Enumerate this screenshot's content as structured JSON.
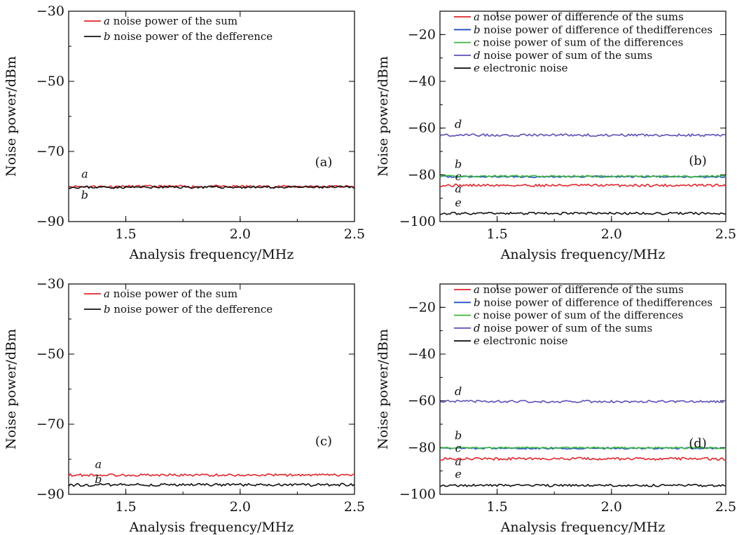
{
  "chart_data": [
    {
      "type": "line",
      "panel_label": "(a)",
      "xlabel": "Analysis frequency/MHz",
      "ylabel": "Noise power/dBm",
      "xlim": [
        1.25,
        2.5
      ],
      "ylim": [
        -90,
        -30
      ],
      "xticks": [
        1.5,
        2.0,
        2.5
      ],
      "xtick_labels": [
        "1.5",
        "2.0",
        "2.5"
      ],
      "yticks": [
        -90,
        -70,
        -50,
        -30
      ],
      "ytick_labels": [
        "−90",
        "−70",
        "−50",
        "−30"
      ],
      "legend_position": "top-left",
      "series": [
        {
          "key": "a",
          "name": "noise power of the sum",
          "color": "#e0262b",
          "level": -80.0,
          "noise": 0.35,
          "seed": 11
        },
        {
          "key": "b",
          "name": "noise power of the defference",
          "color": "#111111",
          "level": -80.2,
          "noise": 0.35,
          "seed": 23
        }
      ],
      "annotations": [
        {
          "text": "a",
          "x": 1.32,
          "y": -77.5
        },
        {
          "text": "b",
          "x": 1.32,
          "y": -83.5
        }
      ]
    },
    {
      "type": "line",
      "panel_label": "(b)",
      "xlabel": "Analysis frequency/MHz",
      "ylabel": "Noise power/dBm",
      "xlim": [
        1.25,
        2.5
      ],
      "ylim": [
        -100,
        -10
      ],
      "xticks": [
        1.5,
        2.0,
        2.5
      ],
      "xtick_labels": [
        "1.5",
        "2.0",
        "2.5"
      ],
      "yticks": [
        -100,
        -80,
        -60,
        -40,
        -20
      ],
      "ytick_labels": [
        "−100",
        "−80",
        "−60",
        "−40",
        "−20"
      ],
      "legend_position": "top-left",
      "series": [
        {
          "key": "a",
          "name": "noise power of difference of the sums",
          "color": "#e0262b",
          "level": -84.5,
          "noise": 0.55,
          "seed": 31
        },
        {
          "key": "b",
          "name": "noise power of difference of thedifferences",
          "color": "#1f4fbf",
          "level": -80.8,
          "noise": 0.35,
          "seed": 37
        },
        {
          "key": "c",
          "name": "noise power of sum of the differences",
          "color": "#3cb43c",
          "level": -80.6,
          "noise": 0.35,
          "seed": 41
        },
        {
          "key": "d",
          "name": "noise power of sum of the sums",
          "color": "#5a4fb8",
          "level": -63.0,
          "noise": 0.55,
          "seed": 43
        },
        {
          "key": "e",
          "name": "electronic noise",
          "color": "#111111",
          "level": -96.5,
          "noise": 0.5,
          "seed": 47
        }
      ],
      "annotations": [
        {
          "text": "d",
          "x": 1.33,
          "y": -60.0
        },
        {
          "text": "b",
          "x": 1.33,
          "y": -77.0
        },
        {
          "text": "c",
          "x": 1.33,
          "y": -82.3
        },
        {
          "text": "a",
          "x": 1.33,
          "y": -87.5
        },
        {
          "text": "e",
          "x": 1.33,
          "y": -93.5
        }
      ]
    },
    {
      "type": "line",
      "panel_label": "(c)",
      "xlabel": "Analysis frequency/MHz",
      "ylabel": "Noise power/dBm",
      "xlim": [
        1.25,
        2.5
      ],
      "ylim": [
        -90,
        -30
      ],
      "xticks": [
        1.5,
        2.0,
        2.5
      ],
      "xtick_labels": [
        "1.5",
        "2.0",
        "2.5"
      ],
      "yticks": [
        -90,
        -70,
        -50,
        -30
      ],
      "ytick_labels": [
        "−90",
        "−70",
        "−50",
        "−30"
      ],
      "legend_position": "top-left",
      "series": [
        {
          "key": "a",
          "name": "noise power of the sum",
          "color": "#e0262b",
          "level": -84.5,
          "noise": 0.35,
          "seed": 53
        },
        {
          "key": "b",
          "name": "noise power of the defference",
          "color": "#111111",
          "level": -87.3,
          "noise": 0.4,
          "seed": 59
        }
      ],
      "annotations": [
        {
          "text": "a",
          "x": 1.38,
          "y": -82.5
        },
        {
          "text": "b",
          "x": 1.38,
          "y": -86.8
        }
      ]
    },
    {
      "type": "line",
      "panel_label": "(d)",
      "xlabel": "Analysis frequency/MHz",
      "ylabel": "Noise power/dBm",
      "xlim": [
        1.25,
        2.5
      ],
      "ylim": [
        -100,
        -10
      ],
      "xticks": [
        1.5,
        2.0,
        2.5
      ],
      "xtick_labels": [
        "1.5",
        "2.0",
        "2.5"
      ],
      "yticks": [
        -100,
        -80,
        -60,
        -40,
        -20
      ],
      "ytick_labels": [
        "−100",
        "−80",
        "−60",
        "−40",
        "−20"
      ],
      "legend_position": "top-left",
      "series": [
        {
          "key": "a",
          "name": "noise power of difference of the sums",
          "color": "#e0262b",
          "level": -84.8,
          "noise": 0.55,
          "seed": 61
        },
        {
          "key": "b",
          "name": "noise power of difference of thedifferences",
          "color": "#1f4fbf",
          "level": -80.3,
          "noise": 0.35,
          "seed": 67
        },
        {
          "key": "c",
          "name": "noise power of sum of the differences",
          "color": "#3cb43c",
          "level": -80.1,
          "noise": 0.35,
          "seed": 71
        },
        {
          "key": "d",
          "name": "noise power of sum of the sums",
          "color": "#5a4fb8",
          "level": -60.3,
          "noise": 0.5,
          "seed": 73
        },
        {
          "key": "e",
          "name": "electronic noise",
          "color": "#111111",
          "level": -96.2,
          "noise": 0.5,
          "seed": 79
        }
      ],
      "annotations": [
        {
          "text": "d",
          "x": 1.33,
          "y": -57.5
        },
        {
          "text": "b",
          "x": 1.33,
          "y": -76.5
        },
        {
          "text": "c",
          "x": 1.33,
          "y": -81.8
        },
        {
          "text": "a",
          "x": 1.33,
          "y": -87.5
        },
        {
          "text": "e",
          "x": 1.33,
          "y": -93.0
        }
      ]
    }
  ]
}
